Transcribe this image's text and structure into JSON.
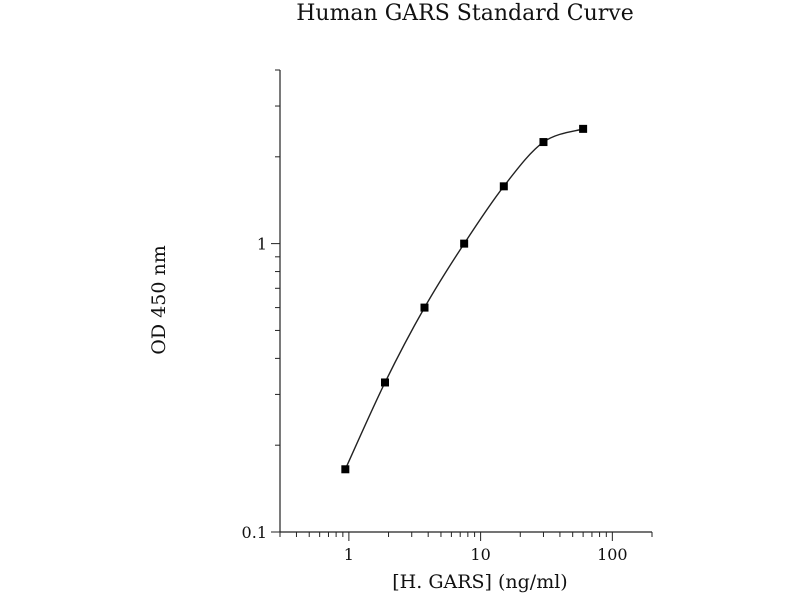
{
  "chart_data": {
    "type": "scatter",
    "title": "Human GARS Standard Curve",
    "xlabel": "[H. GARS] (ng/ml)",
    "ylabel": "OD 450 nm",
    "x_scale": "log",
    "y_scale": "log",
    "xlim": [
      0.3,
      200
    ],
    "ylim": [
      0.1,
      4
    ],
    "x_ticks": [
      {
        "value": 1,
        "label": "1"
      },
      {
        "value": 10,
        "label": "10"
      },
      {
        "value": 100,
        "label": "100"
      }
    ],
    "y_ticks": [
      {
        "value": 0.1,
        "label": "0.1"
      },
      {
        "value": 1,
        "label": "1"
      }
    ],
    "grid": false,
    "legend": "none",
    "series": [
      {
        "x": [
          0.94,
          1.88,
          3.75,
          7.5,
          15,
          30,
          60
        ],
        "y": [
          0.165,
          0.33,
          0.6,
          1.0,
          1.58,
          2.25,
          2.5
        ]
      }
    ],
    "colors": {
      "marker": "#000000",
      "line": "#222222"
    }
  }
}
